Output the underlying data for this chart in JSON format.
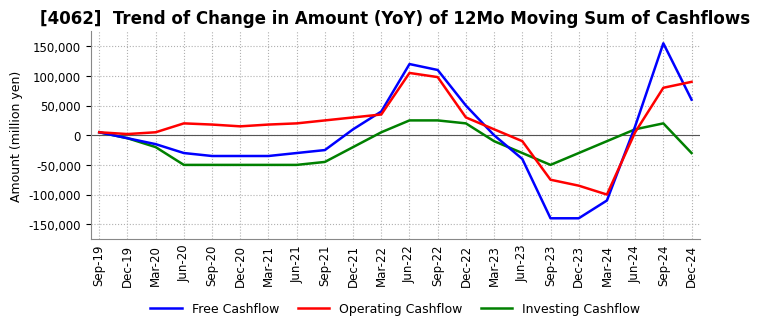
{
  "title": "[4062]  Trend of Change in Amount (YoY) of 12Mo Moving Sum of Cashflows",
  "ylabel": "Amount (million yen)",
  "ylim": [
    -175000,
    175000
  ],
  "yticks": [
    -150000,
    -100000,
    -50000,
    0,
    50000,
    100000,
    150000
  ],
  "legend_labels": [
    "Operating Cashflow",
    "Investing Cashflow",
    "Free Cashflow"
  ],
  "line_colors": [
    "#ff0000",
    "#008000",
    "#0000ff"
  ],
  "dates": [
    "Sep-19",
    "Dec-19",
    "Mar-20",
    "Jun-20",
    "Sep-20",
    "Dec-20",
    "Mar-21",
    "Jun-21",
    "Sep-21",
    "Dec-21",
    "Mar-22",
    "Jun-22",
    "Sep-22",
    "Dec-22",
    "Mar-23",
    "Jun-23",
    "Sep-23",
    "Dec-23",
    "Mar-24",
    "Jun-24",
    "Sep-24",
    "Dec-24"
  ],
  "operating": [
    5000,
    2000,
    5000,
    20000,
    18000,
    15000,
    18000,
    20000,
    25000,
    30000,
    35000,
    105000,
    98000,
    30000,
    10000,
    -10000,
    -75000,
    -85000,
    -100000,
    5000,
    80000,
    90000
  ],
  "investing": [
    5000,
    -5000,
    -20000,
    -50000,
    -50000,
    -50000,
    -50000,
    -50000,
    -45000,
    -20000,
    5000,
    25000,
    25000,
    20000,
    -10000,
    -30000,
    -50000,
    -30000,
    -10000,
    10000,
    20000,
    -30000
  ],
  "free": [
    5000,
    -5000,
    -15000,
    -30000,
    -35000,
    -35000,
    -35000,
    -30000,
    -25000,
    10000,
    40000,
    120000,
    110000,
    50000,
    0,
    -40000,
    -140000,
    -140000,
    -110000,
    15000,
    155000,
    60000
  ],
  "background_color": "#ffffff",
  "grid_color": "#b0b0b0",
  "title_fontsize": 12,
  "axis_fontsize": 9,
  "tick_fontsize": 8.5
}
